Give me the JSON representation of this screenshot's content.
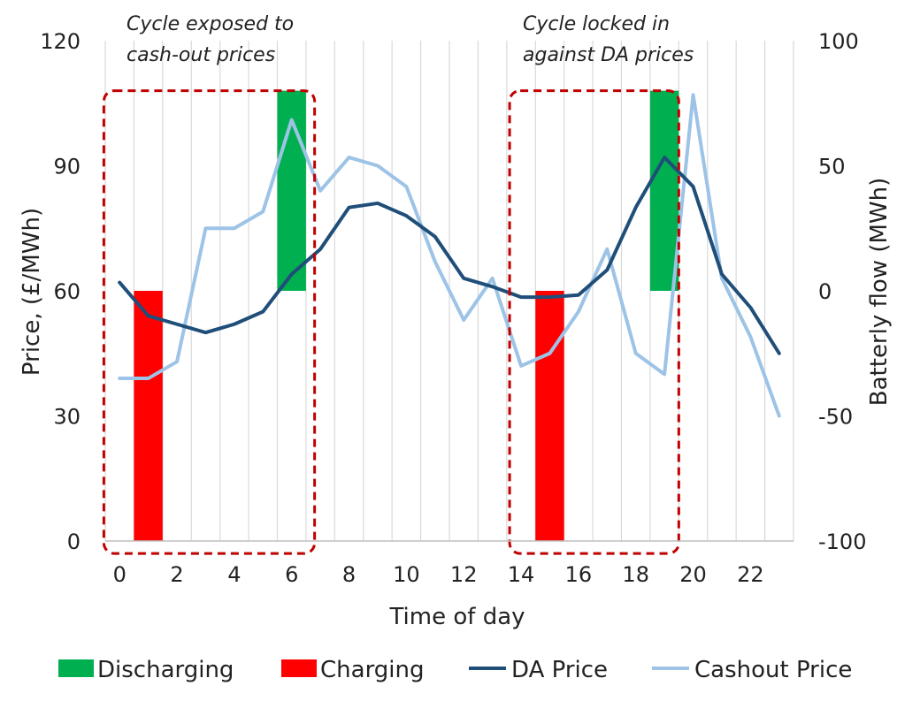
{
  "chart_data": {
    "type": "combo",
    "xlabel": "Time of day",
    "ylabel_left": "Price, (£/MWh)",
    "ylabel_right": "Batterly flow (MWh)",
    "ylim_left": [
      0,
      120
    ],
    "ylim_right": [
      -100,
      100
    ],
    "left_ticks": [
      "0",
      "30",
      "60",
      "90",
      "120"
    ],
    "right_ticks": [
      "-100",
      "-50",
      "0",
      "50",
      "100"
    ],
    "x_ticks": [
      "0",
      "2",
      "4",
      "6",
      "8",
      "10",
      "12",
      "14",
      "16",
      "18",
      "20",
      "22"
    ],
    "x_range": [
      -0.5,
      23.5
    ],
    "grid": "vertical",
    "legend_position": "bottom",
    "colors": {
      "discharging": "#00b050",
      "charging": "#ff0000",
      "da_price": "#1f4e79",
      "cashout_price": "#9dc3e6",
      "box": "#c00000",
      "grid": "#d9d9d9"
    },
    "series": [
      {
        "name": "Discharging",
        "kind": "bar",
        "axis": "right",
        "x": [
          6,
          19
        ],
        "values": [
          80,
          80
        ]
      },
      {
        "name": "Charging",
        "kind": "bar",
        "axis": "right",
        "x": [
          1,
          15
        ],
        "values": [
          -100,
          -100
        ]
      },
      {
        "name": "DA Price",
        "kind": "line",
        "axis": "left",
        "x": [
          0,
          1,
          2,
          3,
          4,
          5,
          6,
          7,
          8,
          9,
          10,
          11,
          12,
          13,
          14,
          15,
          16,
          17,
          18,
          19,
          20,
          21,
          22,
          23
        ],
        "values": [
          62,
          54,
          52,
          50,
          52,
          55,
          64,
          70,
          80,
          81,
          78,
          73,
          63,
          61,
          58.5,
          58.5,
          59,
          65,
          80,
          92,
          85,
          64,
          56,
          45
        ]
      },
      {
        "name": "Cashout Price",
        "kind": "line",
        "axis": "left",
        "x": [
          0,
          1,
          2,
          3,
          4,
          5,
          6,
          7,
          8,
          9,
          10,
          11,
          12,
          13,
          14,
          15,
          16,
          17,
          18,
          19,
          20,
          21,
          22,
          23
        ],
        "values": [
          39,
          39,
          43,
          75,
          75,
          79,
          101,
          84,
          92,
          90,
          85,
          67,
          53,
          63,
          42,
          45,
          55,
          70,
          45,
          40,
          107,
          63,
          49,
          30
        ]
      }
    ],
    "annotations": [
      {
        "lines": [
          "Cycle exposed to",
          "cash-out prices"
        ],
        "box_x": [
          -0.55,
          6.8
        ]
      },
      {
        "lines": [
          "Cycle locked in",
          "against DA prices"
        ],
        "box_x": [
          13.6,
          19.5
        ]
      }
    ],
    "box_y_left": [
      -3,
      108
    ]
  }
}
